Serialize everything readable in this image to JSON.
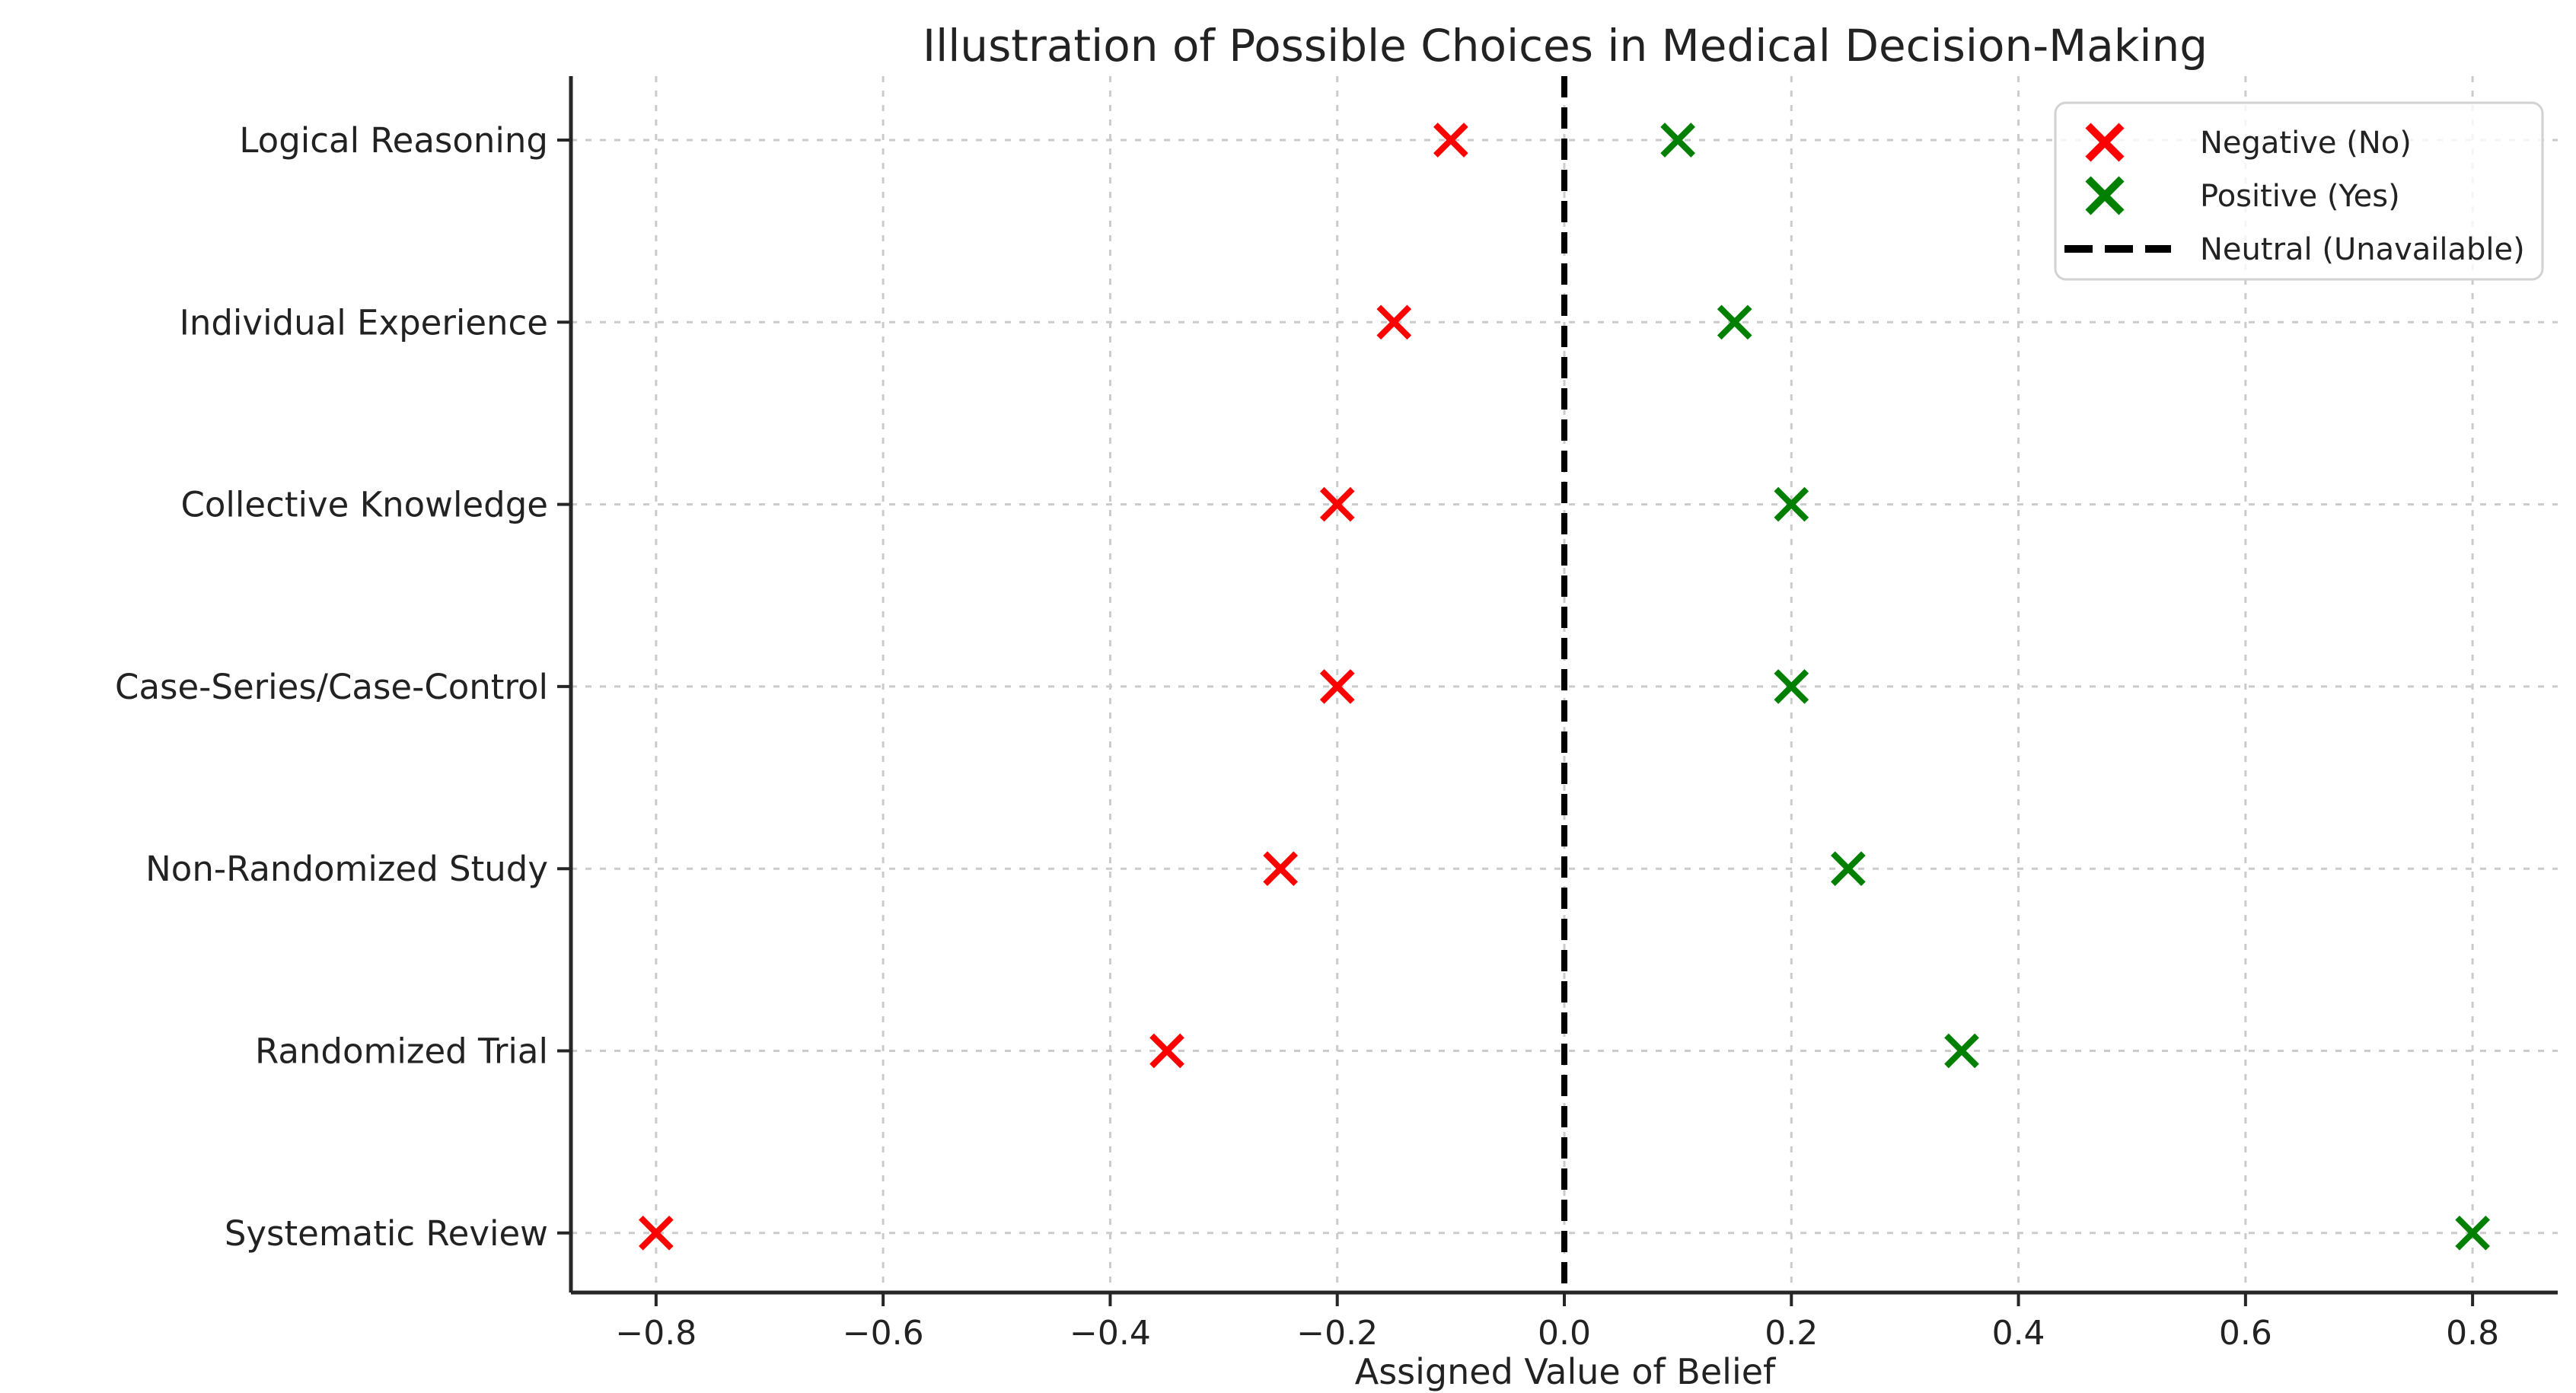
{
  "figure": {
    "background": "#ffffff"
  },
  "chart_data": {
    "type": "scatter",
    "title": "Illustration of Possible Choices in Medical Decision-Making",
    "xlabel": "Assigned Value of Belief",
    "ylabel": "",
    "categories": [
      "Logical Reasoning",
      "Individual Experience",
      "Collective Knowledge",
      "Case-Series/Case-Control",
      "Non-Randomized Study",
      "Randomized Trial",
      "Systematic Review"
    ],
    "series": [
      {
        "name": "Negative (No)",
        "marker": "x",
        "color": "#ff0000",
        "values": [
          -0.1,
          -0.15,
          -0.2,
          -0.2,
          -0.25,
          -0.35,
          -0.8
        ]
      },
      {
        "name": "Positive (Yes)",
        "marker": "x",
        "color": "#008000",
        "values": [
          0.1,
          0.15,
          0.2,
          0.2,
          0.25,
          0.35,
          0.8
        ]
      }
    ],
    "reference_line": {
      "name": "Neutral (Unavailable)",
      "x": 0.0,
      "color": "#000000",
      "style": "dashed"
    },
    "x_ticks": [
      -0.8,
      -0.6,
      -0.4,
      -0.2,
      0.0,
      0.2,
      0.4,
      0.6,
      0.8
    ],
    "x_tick_labels": [
      "−0.8",
      "−0.6",
      "−0.4",
      "−0.2",
      "0.0",
      "0.2",
      "0.4",
      "0.6",
      "0.8"
    ],
    "xlim": [
      -0.875,
      0.875
    ],
    "grid": true,
    "legend_position": "upper right"
  }
}
